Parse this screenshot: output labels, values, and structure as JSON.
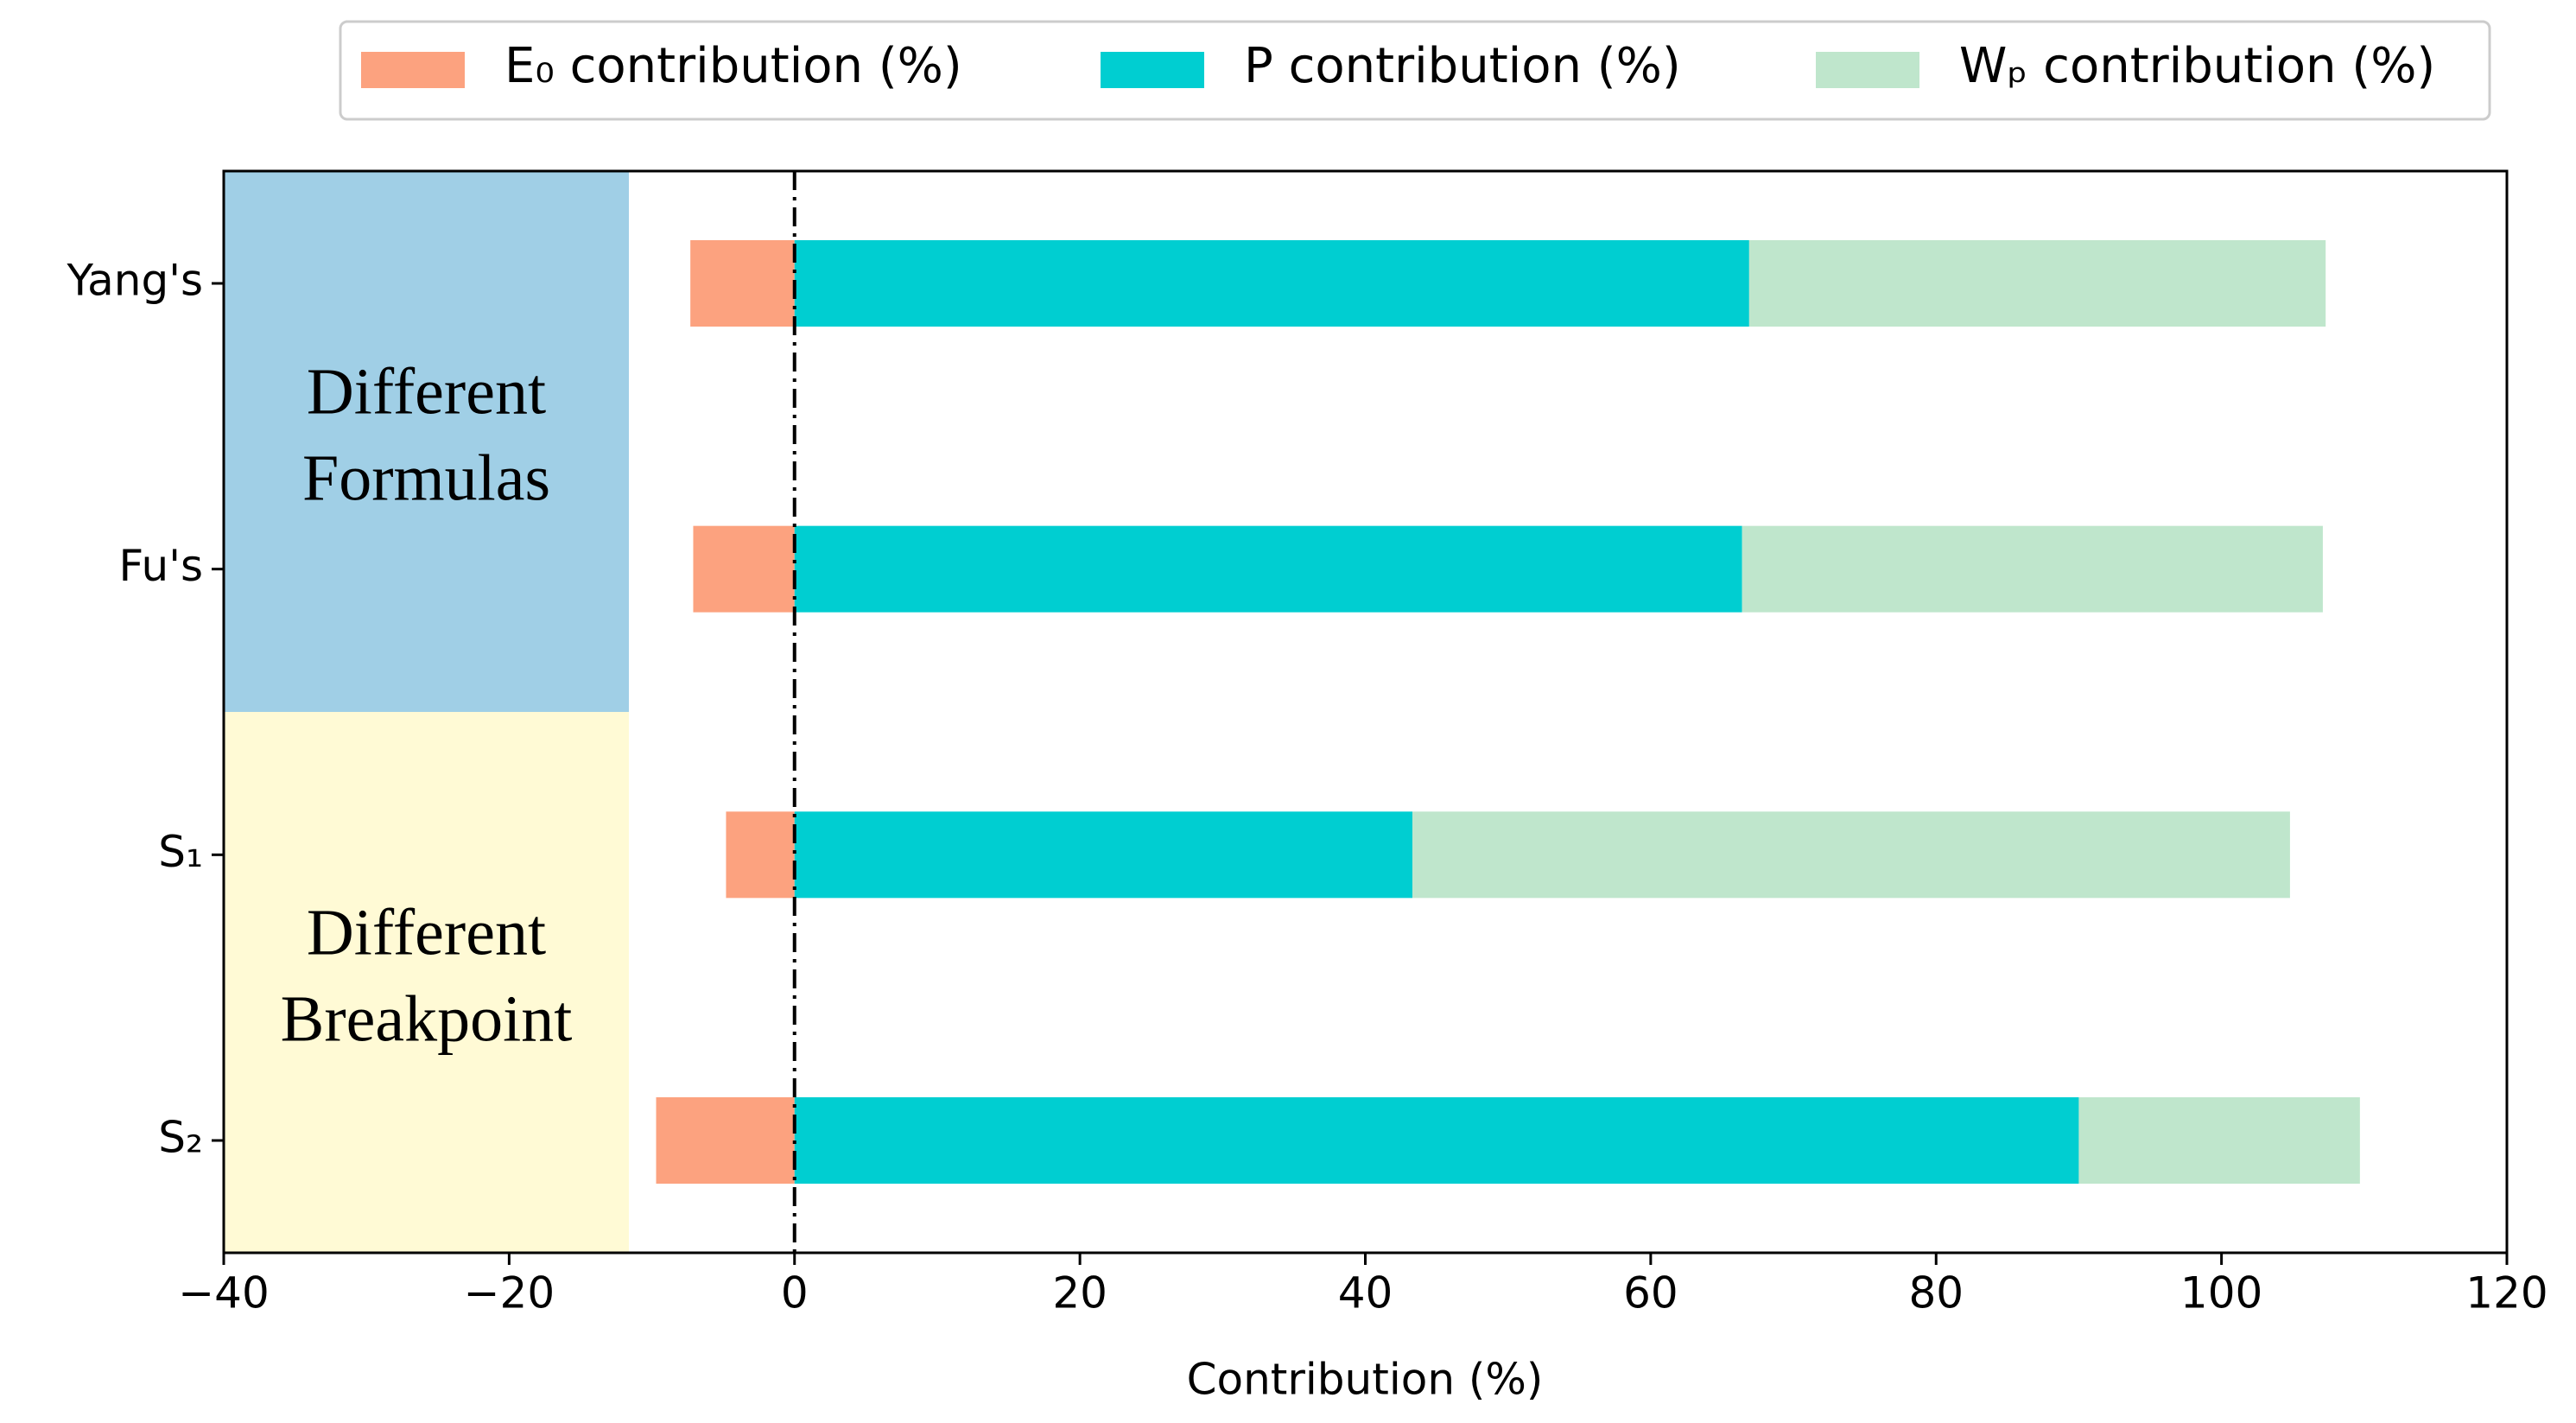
{
  "chart_data": {
    "type": "stacked_barh",
    "categories": [
      "Yang's",
      "Fu's",
      "S₁",
      "S₂"
    ],
    "series": [
      {
        "name": "E₀ contribution (%)",
        "color": "#fca27f",
        "values": [
          -7.3,
          -7.1,
          -4.8,
          -9.7
        ]
      },
      {
        "name": "P contribution (%)",
        "color": "#00ced1",
        "values": [
          66.9,
          66.4,
          43.3,
          90.0
        ]
      },
      {
        "name": "Wₚ contribution (%)",
        "color": "#bfe6cc",
        "values": [
          40.4,
          40.7,
          61.5,
          19.7
        ]
      }
    ],
    "xlabel": "Contribution (%)",
    "xlim": [
      -40,
      120
    ],
    "xticks": [
      {
        "value": -40,
        "label": "−40"
      },
      {
        "value": -20,
        "label": "−20"
      },
      0,
      20,
      40,
      60,
      80,
      100,
      120
    ],
    "reference_line_x": 0,
    "group_labels": [
      [
        "Different",
        "Formulas"
      ],
      [
        "Different",
        "Breakpoint"
      ]
    ],
    "group_colors": [
      "#a0cfe6",
      "#fffad5"
    ],
    "legend": "upper center"
  }
}
